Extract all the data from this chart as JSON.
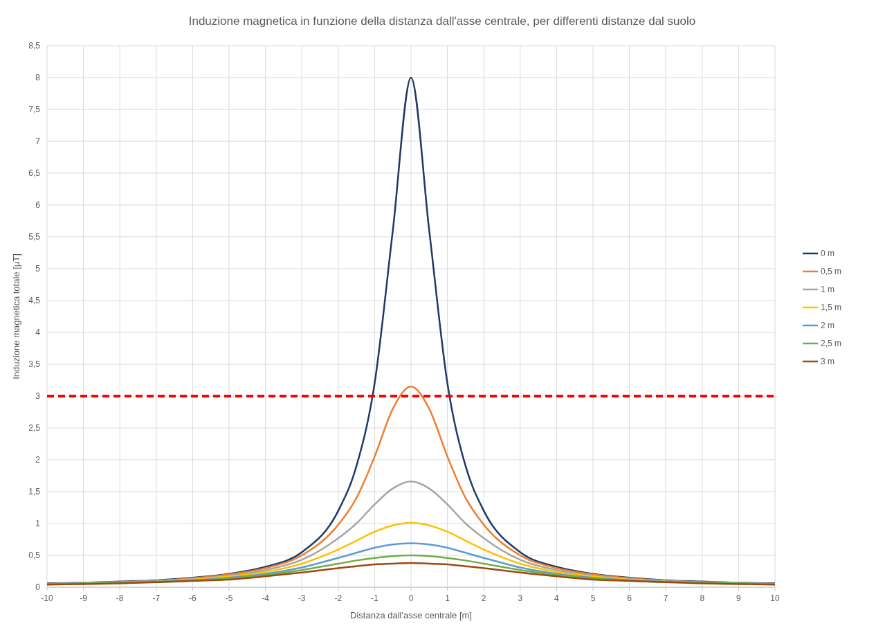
{
  "chart_data": {
    "type": "line",
    "title": "Induzione magnetica  in funzione della distanza dall'asse centrale, per differenti distanze dal suolo",
    "xlabel": "Distanza dall'asse centrale [m]",
    "ylabel": "Induzione magnetica totale [µT]",
    "x": [
      -10,
      -9,
      -8,
      -7,
      -6,
      -5,
      -4,
      -3,
      -2,
      -1.5,
      -1,
      -0.5,
      0,
      0.5,
      1,
      1.5,
      2,
      3,
      4,
      5,
      6,
      7,
      8,
      9,
      10
    ],
    "series": [
      {
        "name": "0 m",
        "color": "#203864",
        "values": [
          0.06,
          0.07,
          0.09,
          0.11,
          0.15,
          0.21,
          0.32,
          0.55,
          1.2,
          1.9,
          3.2,
          5.6,
          8,
          5.6,
          3.2,
          1.9,
          1.2,
          0.55,
          0.32,
          0.21,
          0.15,
          0.11,
          0.09,
          0.07,
          0.06
        ]
      },
      {
        "name": "0,5 m",
        "color": "#ed7d31",
        "values": [
          0.05,
          0.07,
          0.08,
          0.1,
          0.14,
          0.2,
          0.3,
          0.5,
          0.98,
          1.4,
          2.05,
          2.8,
          3.15,
          2.8,
          2.05,
          1.4,
          0.98,
          0.5,
          0.3,
          0.2,
          0.14,
          0.1,
          0.08,
          0.07,
          0.05
        ]
      },
      {
        "name": "1 m",
        "color": "#a5a5a5",
        "values": [
          0.05,
          0.07,
          0.08,
          0.1,
          0.13,
          0.18,
          0.27,
          0.43,
          0.77,
          1.0,
          1.3,
          1.55,
          1.66,
          1.55,
          1.3,
          1.0,
          0.77,
          0.43,
          0.27,
          0.18,
          0.13,
          0.1,
          0.08,
          0.07,
          0.05
        ]
      },
      {
        "name": "1,5 m",
        "color": "#ffc000",
        "values": [
          null,
          null,
          null,
          0.1,
          0.12,
          0.17,
          0.24,
          0.37,
          0.59,
          0.73,
          0.87,
          0.97,
          1.01,
          0.97,
          0.87,
          0.73,
          0.59,
          0.37,
          0.24,
          0.17,
          0.12,
          0.1,
          null,
          null,
          null
        ]
      },
      {
        "name": "2 m",
        "color": "#5b9bd5",
        "values": [
          0.05,
          0.06,
          0.07,
          0.09,
          0.11,
          0.15,
          0.21,
          0.31,
          0.46,
          0.54,
          0.62,
          0.67,
          0.69,
          0.67,
          0.62,
          0.54,
          0.46,
          0.31,
          0.21,
          0.15,
          0.11,
          0.09,
          0.07,
          0.06,
          0.05
        ]
      },
      {
        "name": "2,5 m",
        "color": "#70ad47",
        "values": [
          0.05,
          0.06,
          0.07,
          0.08,
          0.1,
          0.14,
          0.19,
          0.27,
          0.37,
          0.42,
          0.46,
          0.49,
          0.5,
          0.49,
          0.46,
          0.42,
          0.37,
          0.27,
          0.19,
          0.14,
          0.1,
          0.08,
          0.07,
          0.06,
          0.05
        ]
      },
      {
        "name": "3 m",
        "color": "#9e480e",
        "values": [
          0.04,
          0.05,
          0.06,
          0.08,
          0.1,
          0.12,
          0.17,
          0.23,
          0.3,
          0.33,
          0.36,
          0.37,
          0.38,
          0.37,
          0.36,
          0.33,
          0.3,
          0.23,
          0.17,
          0.12,
          0.1,
          0.08,
          0.06,
          0.05,
          0.04
        ]
      }
    ],
    "xlim": [
      -10,
      10
    ],
    "xticks": [
      -10,
      -9,
      -8,
      -7,
      -6,
      -5,
      -4,
      -3,
      -2,
      -1,
      0,
      1,
      2,
      3,
      4,
      5,
      6,
      7,
      8,
      9,
      10
    ],
    "ylim": [
      0,
      8.5
    ],
    "yticks": [
      0,
      {
        "value": 0.5,
        "label": "0,5"
      },
      1,
      {
        "value": 1.5,
        "label": "1,5"
      },
      2,
      {
        "value": 2.5,
        "label": "2,5"
      },
      3,
      {
        "value": 3.5,
        "label": "3,5"
      },
      4,
      {
        "value": 4.5,
        "label": "4,5"
      },
      5,
      {
        "value": 5.5,
        "label": "5,5"
      },
      6,
      {
        "value": 6.5,
        "label": "6,5"
      },
      7,
      {
        "value": 7.5,
        "label": "7,5"
      },
      8,
      {
        "value": 8.5,
        "label": "8,5"
      }
    ],
    "ref_lines": [
      {
        "axis": "y",
        "value": 3,
        "label": null,
        "color": "#ff0000",
        "line_style": "dashed"
      }
    ],
    "grid": true,
    "legend": "right",
    "line_style": "solid"
  }
}
